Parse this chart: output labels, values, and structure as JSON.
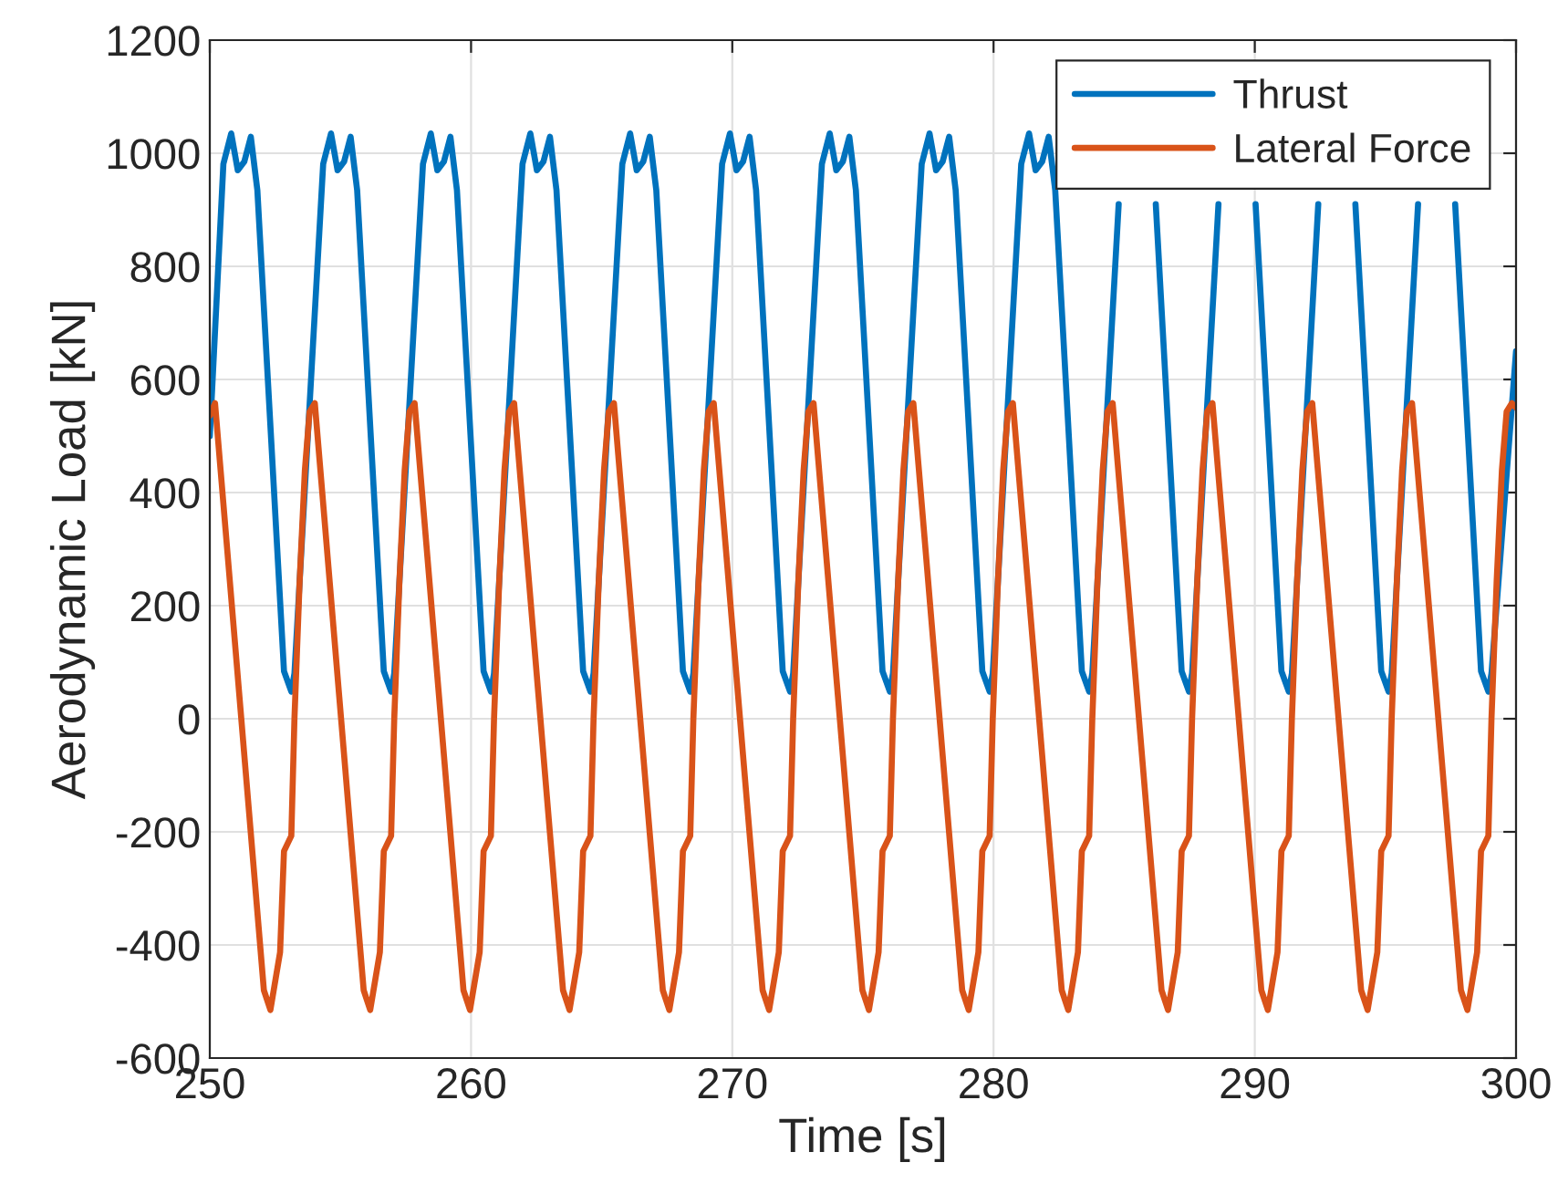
{
  "chart_data": {
    "type": "line",
    "xlabel": "Time [s]",
    "ylabel": "Aerodynamic Load [kN]",
    "xlim": [
      250,
      300
    ],
    "xticks": [
      250,
      260,
      270,
      280,
      290,
      300
    ],
    "ylim": [
      -600,
      1200
    ],
    "yticks": [
      -600,
      -400,
      -200,
      0,
      200,
      400,
      600,
      800,
      1000,
      1200
    ],
    "grid": true,
    "legend": "top right",
    "marker": "none",
    "line_style": "solid",
    "series": [
      {
        "name": "Thrust",
        "color": "#0072bd",
        "x": [
          250.0,
          250.52,
          250.82,
          251.07,
          251.32,
          251.57,
          251.82,
          252.84,
          253.12,
          253.24,
          254.34,
          254.64,
          254.89,
          255.14,
          255.39,
          255.64,
          256.66,
          256.94,
          257.06,
          258.16,
          258.46,
          258.71,
          258.96,
          259.21,
          259.46,
          260.48,
          260.76,
          260.88,
          261.97,
          262.27,
          262.52,
          262.77,
          263.02,
          263.27,
          264.29,
          264.57,
          264.69,
          265.79,
          266.09,
          266.34,
          266.59,
          266.84,
          267.09,
          268.11,
          268.39,
          268.51,
          269.61,
          269.91,
          270.16,
          270.41,
          270.66,
          270.91,
          271.93,
          272.21,
          272.33,
          273.43,
          273.73,
          273.98,
          274.23,
          274.48,
          274.73,
          275.75,
          276.03,
          276.15,
          277.25,
          277.55,
          277.8,
          278.05,
          278.3,
          278.55,
          279.57,
          279.85,
          279.97,
          281.06,
          281.36,
          281.61,
          281.86,
          282.11,
          282.36,
          283.38,
          283.66,
          283.78,
          284.79,
          285.5,
          286.21,
          287.2,
          287.48,
          287.6,
          288.61,
          289.3,
          290.03,
          291.02,
          291.3,
          291.42,
          292.43,
          293.1,
          293.85,
          294.84,
          295.12,
          295.24,
          296.25,
          296.9,
          297.67,
          298.66,
          298.94,
          299.06,
          300.0
        ],
        "values": [
          500,
          981,
          1035,
          970,
          985,
          1029,
          935,
          84,
          48,
          80,
          981,
          1035,
          970,
          985,
          1029,
          935,
          84,
          48,
          80,
          981,
          1035,
          970,
          985,
          1029,
          935,
          84,
          48,
          80,
          981,
          1035,
          970,
          985,
          1029,
          935,
          84,
          48,
          80,
          981,
          1035,
          970,
          985,
          1029,
          935,
          84,
          48,
          80,
          981,
          1035,
          970,
          985,
          1029,
          935,
          84,
          48,
          80,
          981,
          1035,
          970,
          985,
          1029,
          935,
          84,
          48,
          80,
          981,
          1035,
          970,
          985,
          1029,
          935,
          84,
          48,
          80,
          981,
          1035,
          970,
          985,
          1029,
          935,
          84,
          48,
          80,
          910,
          null,
          910,
          84,
          48,
          80,
          910,
          null,
          910,
          84,
          48,
          80,
          910,
          null,
          910,
          84,
          48,
          80,
          910,
          null,
          910,
          84,
          48,
          80,
          650
        ]
      },
      {
        "name": "Lateral Force",
        "color": "#d95319",
        "x": [
          250.0,
          250.2,
          252.07,
          252.32,
          252.69,
          252.84,
          253.12,
          253.24,
          253.44,
          253.64,
          253.82,
          254.02,
          255.89,
          256.14,
          256.51,
          256.66,
          256.94,
          257.06,
          257.26,
          257.46,
          257.64,
          257.84,
          259.71,
          259.96,
          260.33,
          260.48,
          260.76,
          260.88,
          261.08,
          261.28,
          261.46,
          261.65,
          263.52,
          263.77,
          264.14,
          264.29,
          264.57,
          264.69,
          264.89,
          265.09,
          265.27,
          265.47,
          267.34,
          267.59,
          267.96,
          268.11,
          268.39,
          268.51,
          268.71,
          268.91,
          269.09,
          269.29,
          271.16,
          271.41,
          271.78,
          271.93,
          272.21,
          272.33,
          272.53,
          272.73,
          272.91,
          273.11,
          274.98,
          275.23,
          275.6,
          275.75,
          276.03,
          276.15,
          276.35,
          276.55,
          276.73,
          276.93,
          278.8,
          279.05,
          279.42,
          279.57,
          279.85,
          279.97,
          280.17,
          280.37,
          280.55,
          280.74,
          282.61,
          282.86,
          283.23,
          283.38,
          283.66,
          283.78,
          283.98,
          284.18,
          284.36,
          284.56,
          286.43,
          286.68,
          287.05,
          287.2,
          287.48,
          287.6,
          287.8,
          288.0,
          288.18,
          288.38,
          290.25,
          290.5,
          290.87,
          291.02,
          291.3,
          291.42,
          291.62,
          291.82,
          292.0,
          292.2,
          294.07,
          294.32,
          294.69,
          294.84,
          295.12,
          295.24,
          295.44,
          295.64,
          295.82,
          296.02,
          297.89,
          298.14,
          298.51,
          298.66,
          298.94,
          299.06,
          299.26,
          299.46,
          299.64,
          299.84,
          300.0
        ],
        "values": [
          536,
          558,
          -480,
          -515,
          -413,
          -234,
          -207,
          0,
          245,
          440,
          543,
          558,
          -480,
          -515,
          -413,
          -234,
          -207,
          0,
          245,
          440,
          543,
          558,
          -480,
          -515,
          -413,
          -234,
          -207,
          0,
          245,
          440,
          543,
          558,
          -480,
          -515,
          -413,
          -234,
          -207,
          0,
          245,
          440,
          543,
          558,
          -480,
          -515,
          -413,
          -234,
          -207,
          0,
          245,
          440,
          543,
          558,
          -480,
          -515,
          -413,
          -234,
          -207,
          0,
          245,
          440,
          543,
          558,
          -480,
          -515,
          -413,
          -234,
          -207,
          0,
          245,
          440,
          543,
          558,
          -480,
          -515,
          -413,
          -234,
          -207,
          0,
          245,
          440,
          543,
          558,
          -480,
          -515,
          -413,
          -234,
          -207,
          0,
          245,
          440,
          543,
          558,
          -480,
          -515,
          -413,
          -234,
          -207,
          0,
          245,
          440,
          543,
          558,
          -480,
          -515,
          -413,
          -234,
          -207,
          0,
          245,
          440,
          543,
          558,
          -480,
          -515,
          -413,
          -234,
          -207,
          0,
          245,
          440,
          543,
          558,
          -480,
          -515,
          -413,
          -234,
          -207,
          0,
          245,
          440,
          543,
          558,
          550
        ]
      }
    ]
  }
}
